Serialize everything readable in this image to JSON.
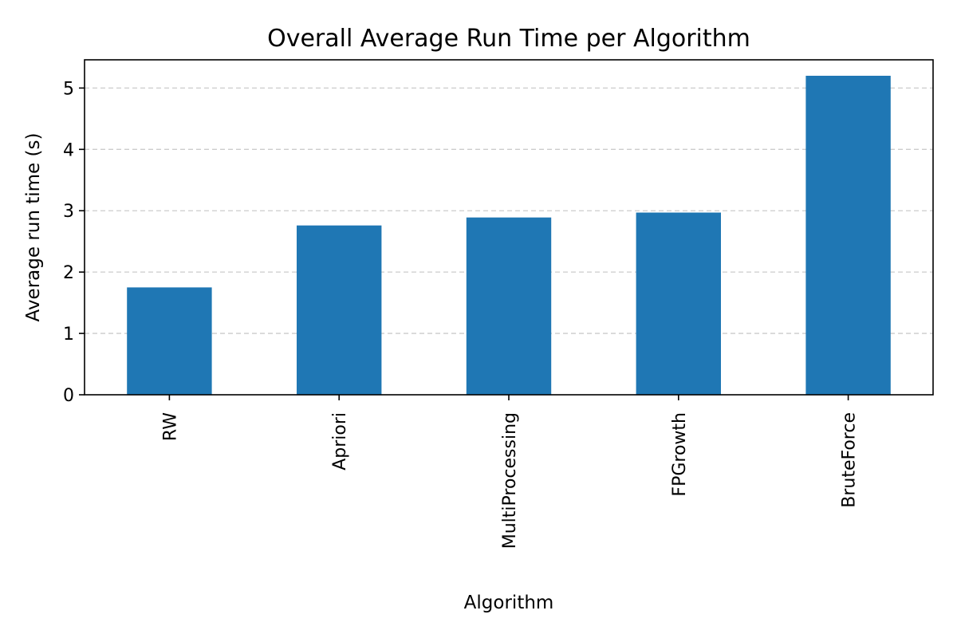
{
  "chart_data": {
    "type": "bar",
    "title": "Overall Average Run Time per Algorithm",
    "xlabel": "Algorithm",
    "ylabel": "Average run time (s)",
    "categories": [
      "RW",
      "Apriori",
      "MultiProcessing",
      "FPGrowth",
      "BruteForce"
    ],
    "values": [
      1.75,
      2.76,
      2.89,
      2.97,
      5.2
    ],
    "ylim": [
      0,
      5.46
    ],
    "yticks": [
      0,
      1,
      2,
      3,
      4,
      5
    ],
    "grid": "y",
    "legend": "none",
    "bar_color": "#1f77b4",
    "grid_color": "#cccccc"
  }
}
